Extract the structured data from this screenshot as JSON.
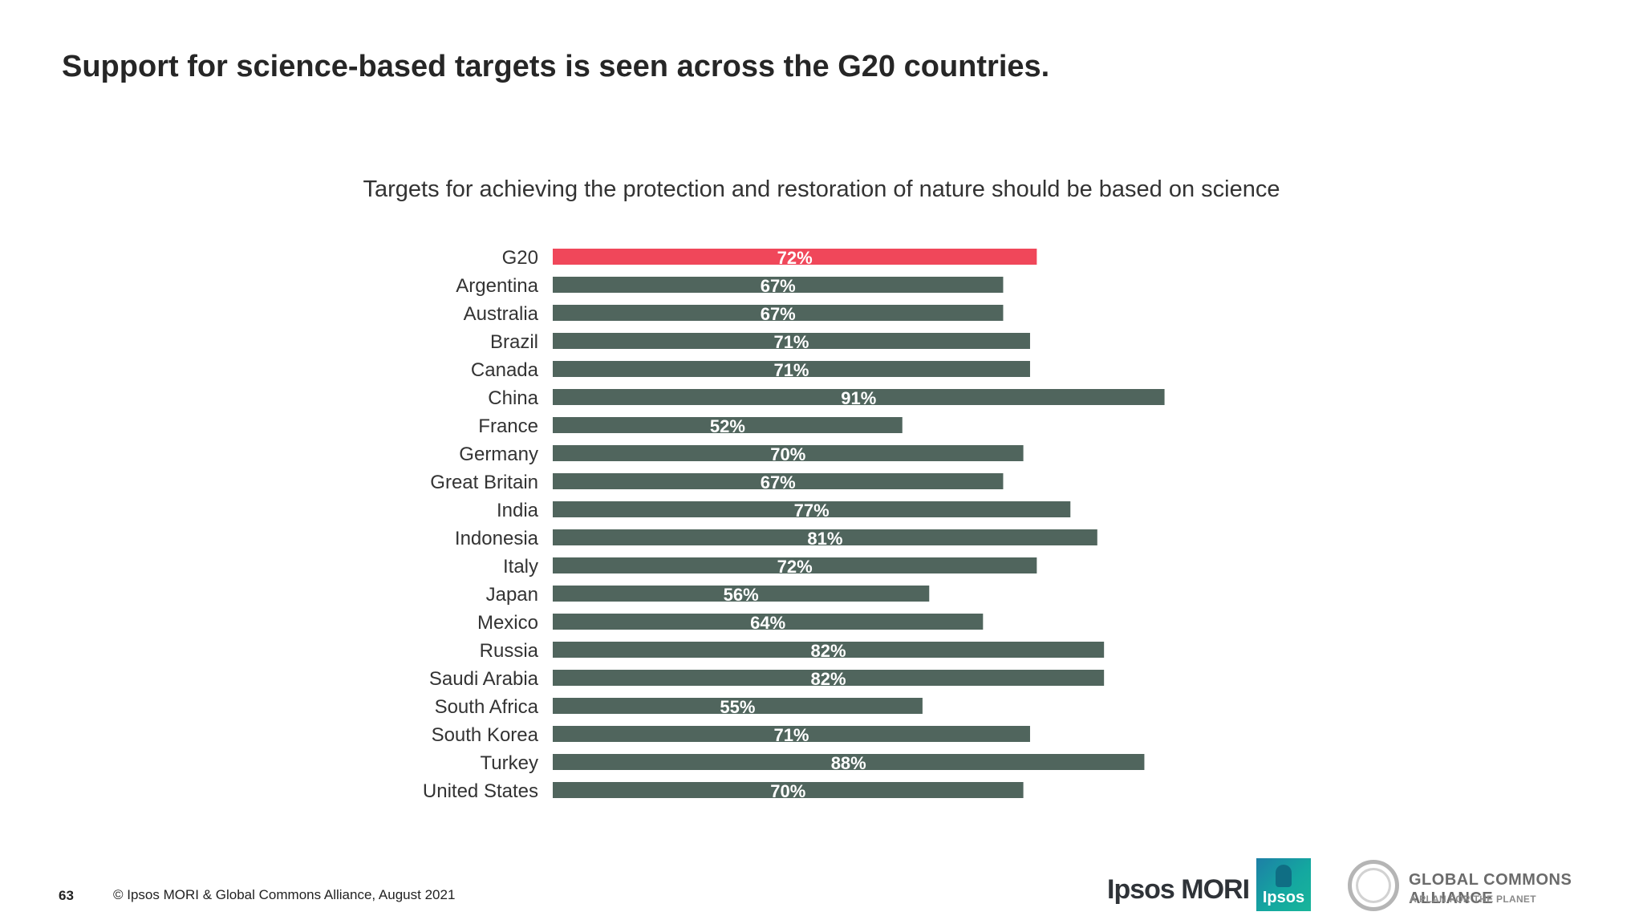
{
  "page": {
    "title": "Support for science-based targets is seen across the G20 countries.",
    "page_number": "63",
    "copyright": "© Ipsos MORI & Global Commons Alliance, August 2021"
  },
  "logos": {
    "ipsos_mori": "Ipsos MORI",
    "ipsos": "Ipsos",
    "gca_name": "GLOBAL COMMONS ALLIANCE",
    "gca_tagline": "A PLAN FOR THE PLANET"
  },
  "colors": {
    "highlight": "#f0475a",
    "bar": "#50655d",
    "label": "#333333",
    "value_label": "#ffffff"
  },
  "chart_data": {
    "type": "bar",
    "orientation": "horizontal",
    "title": "Targets for achieving the protection and restoration of nature should be based on science",
    "categories": [
      "G20",
      "Argentina",
      "Australia",
      "Brazil",
      "Canada",
      "China",
      "France",
      "Germany",
      "Great Britain",
      "India",
      "Indonesia",
      "Italy",
      "Japan",
      "Mexico",
      "Russia",
      "Saudi Arabia",
      "South Africa",
      "South Korea",
      "Turkey",
      "United States"
    ],
    "values": [
      72,
      67,
      67,
      71,
      71,
      91,
      52,
      70,
      67,
      77,
      81,
      72,
      56,
      64,
      82,
      82,
      55,
      71,
      88,
      70
    ],
    "value_labels": [
      "72%",
      "67%",
      "67%",
      "71%",
      "71%",
      "91%",
      "52%",
      "70%",
      "67%",
      "77%",
      "81%",
      "72%",
      "56%",
      "64%",
      "82%",
      "82%",
      "55%",
      "71%",
      "88%",
      "70%"
    ],
    "highlight_category": "G20",
    "xlim": [
      0,
      100
    ],
    "grid": false,
    "legend": "none"
  }
}
